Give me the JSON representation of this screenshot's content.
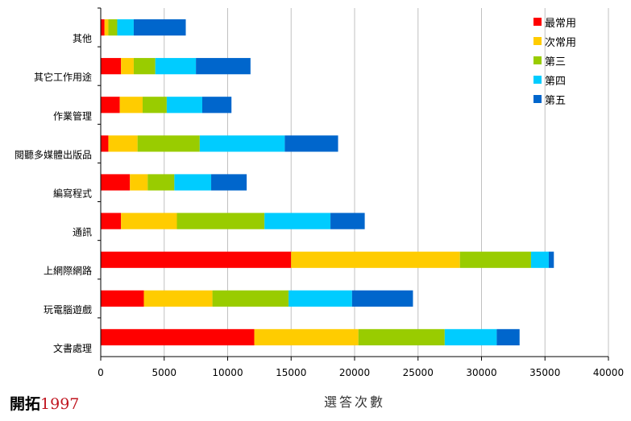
{
  "chart_data": {
    "type": "bar",
    "orientation": "horizontal",
    "stacked": true,
    "title": "",
    "xlabel": "選答次數",
    "ylabel": "",
    "xlim": [
      0,
      40000
    ],
    "xticks": [
      0,
      5000,
      10000,
      15000,
      20000,
      25000,
      30000,
      35000,
      40000
    ],
    "grid": true,
    "legend_position": "top-right",
    "categories": [
      "其他",
      "其它工作用途",
      "作業管理",
      "閱聽多媒體出版品",
      "編寫程式",
      "通訊",
      "上網際網路",
      "玩電腦遊戲",
      "文書處理"
    ],
    "series": [
      {
        "name": "最常用",
        "color": "#ff0000",
        "values": [
          300,
          1600,
          1500,
          600,
          2300,
          1600,
          15000,
          3400,
          12100
        ]
      },
      {
        "name": "次常用",
        "color": "#ffcc00",
        "values": [
          300,
          1000,
          1800,
          2300,
          1400,
          4400,
          13300,
          5400,
          8200
        ]
      },
      {
        "name": "第三",
        "color": "#99cc00",
        "values": [
          700,
          1700,
          1900,
          4900,
          2100,
          6900,
          5600,
          6000,
          6800
        ]
      },
      {
        "name": "第四",
        "color": "#00ccff",
        "values": [
          1300,
          3200,
          2800,
          6700,
          2900,
          5200,
          1400,
          5000,
          4100
        ]
      },
      {
        "name": "第五",
        "color": "#0066cc",
        "values": [
          4100,
          4300,
          2300,
          4200,
          2800,
          2700,
          400,
          4800,
          1800
        ]
      }
    ]
  },
  "brand": {
    "name": "開拓",
    "year": "1997"
  }
}
